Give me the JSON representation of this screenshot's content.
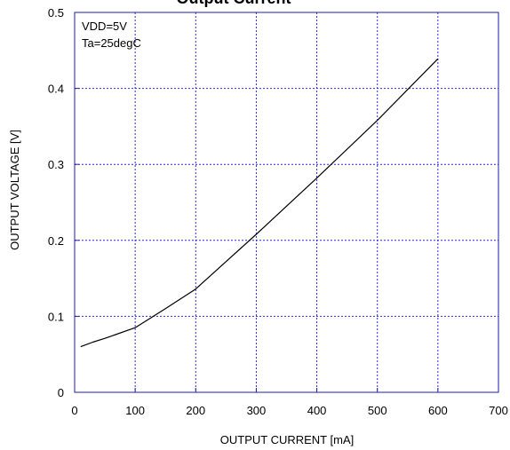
{
  "chart_data": {
    "type": "line",
    "title": "Output Current",
    "xlabel": "OUTPUT CURRENT [mA]",
    "ylabel": "OUTPUT  VOLTAGE [V]",
    "xlim": [
      0,
      700
    ],
    "ylim": [
      0,
      0.5
    ],
    "x_ticks": [
      0,
      100,
      200,
      300,
      400,
      500,
      600,
      700
    ],
    "y_ticks": [
      0,
      0.1,
      0.2,
      0.3,
      0.4,
      0.5
    ],
    "x_tick_labels": [
      "0",
      "100",
      "200",
      "300",
      "400",
      "500",
      "600",
      "700"
    ],
    "y_tick_labels": [
      "0",
      "0.1",
      "0.2",
      "0.3",
      "0.4",
      "0.5"
    ],
    "grid": true,
    "annotations": [
      "VDD=5V",
      "Ta=25degC"
    ],
    "series": [
      {
        "x": [
          10,
          20,
          30,
          50,
          100,
          150,
          200,
          300,
          400,
          500,
          600
        ],
        "values": [
          0.06,
          0.063,
          0.066,
          0.071,
          0.085,
          0.11,
          0.136,
          0.208,
          0.282,
          0.358,
          0.439
        ]
      }
    ]
  },
  "colors": {
    "curve": "#000000",
    "grid": "#2c2cc8",
    "frame": "#1e1eaa"
  }
}
